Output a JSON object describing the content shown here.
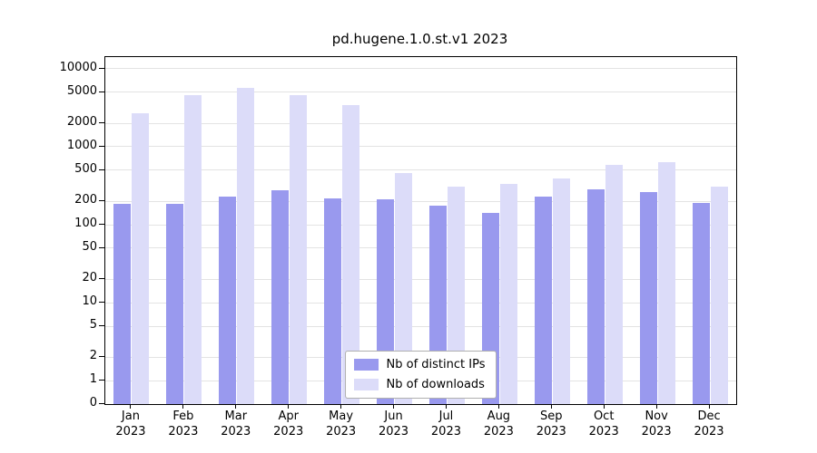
{
  "chart_data": {
    "type": "bar",
    "title": "pd.hugene.1.0.st.v1 2023",
    "x_months": [
      "Jan",
      "Feb",
      "Mar",
      "Apr",
      "May",
      "Jun",
      "Jul",
      "Aug",
      "Sep",
      "Oct",
      "Nov",
      "Dec"
    ],
    "x_year": "2023",
    "y_scale": "log",
    "y_ticks": [
      0,
      1,
      2,
      5,
      10,
      20,
      50,
      100,
      200,
      500,
      1000,
      2000,
      5000,
      10000
    ],
    "ylim": [
      0,
      13000
    ],
    "grid": true,
    "legend_position": "lower center",
    "series": [
      {
        "name": "Nb of distinct IPs",
        "color": "#9999ee",
        "values": [
          185,
          185,
          230,
          280,
          220,
          210,
          175,
          140,
          230,
          285,
          265,
          190
        ]
      },
      {
        "name": "Nb of downloads",
        "color": "#dcdcf9",
        "values": [
          2700,
          4600,
          5700,
          4600,
          3400,
          460,
          310,
          330,
          390,
          580,
          630,
          310
        ]
      }
    ]
  }
}
